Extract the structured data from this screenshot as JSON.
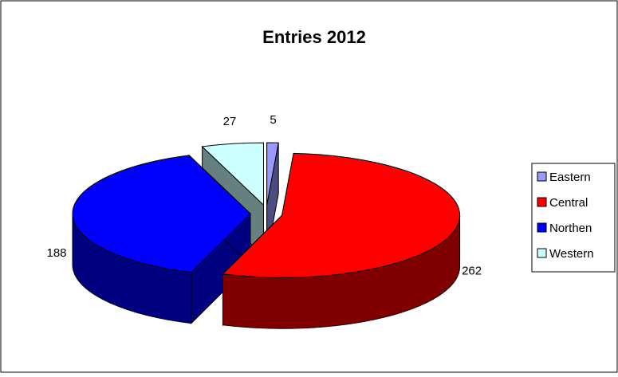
{
  "chart_data": {
    "type": "pie",
    "title": "Entries 2012",
    "three_d": true,
    "exploded": true,
    "legend_position": "right",
    "series": [
      {
        "categories": [
          "Eastern",
          "Central",
          "Northen",
          "Western"
        ],
        "values": [
          5,
          262,
          188,
          27
        ],
        "data_labels": [
          "5",
          "262",
          "188",
          "27"
        ],
        "colors": [
          "#9999FF",
          "#FF0000",
          "#0000FF",
          "#CCFFFF"
        ],
        "side_colors": [
          "#4C4C80",
          "#800000",
          "#000080",
          "#668080"
        ]
      }
    ]
  }
}
